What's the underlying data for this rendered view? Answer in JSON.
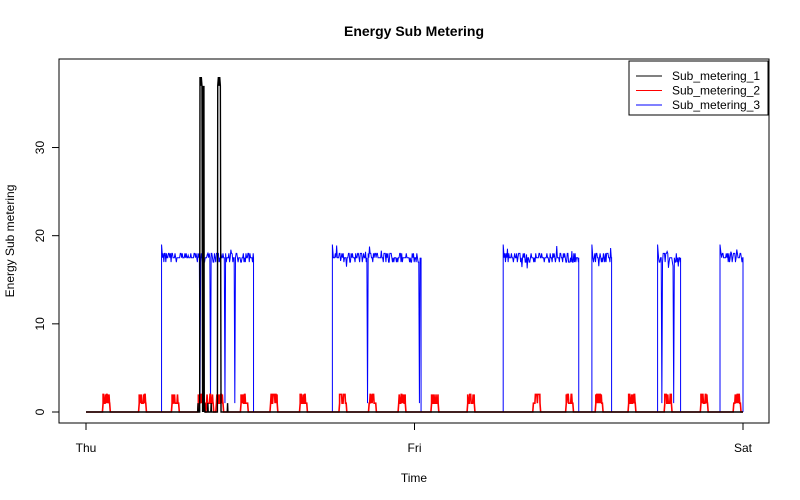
{
  "chart_data": {
    "type": "line",
    "title": "Energy Sub Metering",
    "xlabel": "Time",
    "ylabel": "Energy Sub metering",
    "x_ticks": [
      "Thu",
      "Fri",
      "Sat"
    ],
    "x_range_days": [
      0,
      2
    ],
    "y_ticks": [
      0,
      10,
      20,
      30
    ],
    "ylim": [
      -1,
      40
    ],
    "grid": false,
    "legend_position": "top-right",
    "series": [
      {
        "name": "Sub_metering_1",
        "color": "#000000",
        "points": [
          [
            0.0,
            0
          ],
          [
            0.36,
            0
          ],
          [
            0.361,
            1
          ],
          [
            0.362,
            0
          ],
          [
            0.355,
            0
          ],
          [
            0.356,
            1
          ],
          [
            0.357,
            0
          ],
          [
            0.34,
            0
          ],
          [
            0.341,
            1
          ],
          [
            0.342,
            0
          ],
          [
            0.346,
            0
          ],
          [
            0.347,
            38
          ],
          [
            0.349,
            37
          ],
          [
            0.351,
            38
          ],
          [
            0.353,
            37
          ],
          [
            0.356,
            37
          ],
          [
            0.357,
            0
          ],
          [
            0.359,
            37
          ],
          [
            0.36,
            0
          ],
          [
            0.37,
            0
          ],
          [
            0.371,
            1
          ],
          [
            0.372,
            0
          ],
          [
            0.38,
            0
          ],
          [
            0.381,
            1
          ],
          [
            0.382,
            0
          ],
          [
            0.4,
            0
          ],
          [
            0.401,
            37
          ],
          [
            0.403,
            38
          ],
          [
            0.405,
            37
          ],
          [
            0.407,
            38
          ],
          [
            0.409,
            37
          ],
          [
            0.411,
            0
          ],
          [
            0.42,
            0
          ],
          [
            0.43,
            0
          ],
          [
            0.431,
            1
          ],
          [
            0.432,
            0
          ],
          [
            2.0,
            0
          ]
        ]
      },
      {
        "name": "Sub_metering_2",
        "color": "#ff0000",
        "cycle_starts": [
          0.05,
          0.16,
          0.26,
          0.34,
          0.365,
          0.395,
          0.47,
          0.56,
          0.65,
          0.77,
          0.86,
          0.95,
          1.05,
          1.16,
          1.36,
          1.46,
          1.55,
          1.65,
          1.76,
          1.87,
          1.97
        ],
        "cycle_value": 2
      },
      {
        "name": "Sub_metering_3",
        "color": "#0000ff",
        "blocks": [
          {
            "start": 0.23,
            "end": 0.51,
            "level": 17.5
          },
          {
            "start": 0.75,
            "end": 1.02,
            "level": 17.5
          },
          {
            "start": 1.27,
            "end": 1.5,
            "level": 17.5
          },
          {
            "start": 1.54,
            "end": 1.6,
            "level": 17.5
          },
          {
            "start": 1.74,
            "end": 1.81,
            "level": 17.5
          },
          {
            "start": 1.93,
            "end": 2.0,
            "level": 17.5
          }
        ],
        "baseline": 0
      }
    ]
  }
}
